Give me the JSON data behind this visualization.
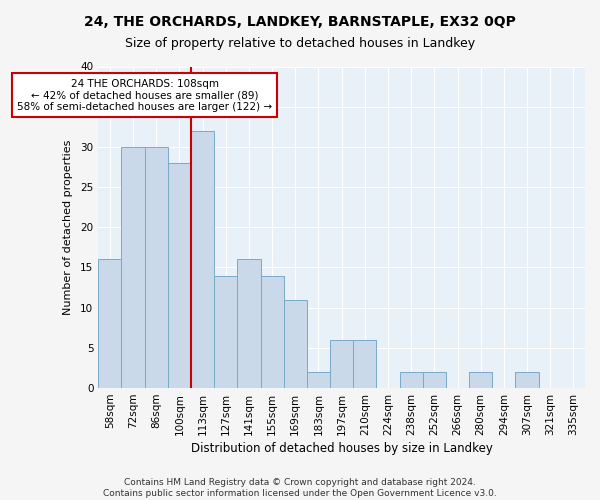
{
  "title1": "24, THE ORCHARDS, LANDKEY, BARNSTAPLE, EX32 0QP",
  "title2": "Size of property relative to detached houses in Landkey",
  "xlabel": "Distribution of detached houses by size in Landkey",
  "ylabel": "Number of detached properties",
  "categories": [
    "58sqm",
    "72sqm",
    "86sqm",
    "100sqm",
    "113sqm",
    "127sqm",
    "141sqm",
    "155sqm",
    "169sqm",
    "183sqm",
    "197sqm",
    "210sqm",
    "224sqm",
    "238sqm",
    "252sqm",
    "266sqm",
    "280sqm",
    "294sqm",
    "307sqm",
    "321sqm",
    "335sqm"
  ],
  "values": [
    16,
    30,
    30,
    28,
    32,
    14,
    16,
    14,
    11,
    2,
    6,
    6,
    0,
    2,
    2,
    0,
    2,
    0,
    2,
    0,
    0
  ],
  "bar_color": "#c9d9ea",
  "bar_edge_color": "#7aaac8",
  "vline_color": "#cc0000",
  "annotation_text": "24 THE ORCHARDS: 108sqm\n← 42% of detached houses are smaller (89)\n58% of semi-detached houses are larger (122) →",
  "annotation_box_color": "#ffffff",
  "annotation_box_edge": "#cc0000",
  "ylim": [
    0,
    40
  ],
  "yticks": [
    0,
    5,
    10,
    15,
    20,
    25,
    30,
    35,
    40
  ],
  "footnote": "Contains HM Land Registry data © Crown copyright and database right 2024.\nContains public sector information licensed under the Open Government Licence v3.0.",
  "bg_color": "#e8f0f8",
  "grid_color": "#ffffff",
  "fig_color": "#f5f5f5",
  "title1_fontsize": 10,
  "title2_fontsize": 9,
  "xlabel_fontsize": 8.5,
  "ylabel_fontsize": 8,
  "tick_fontsize": 7.5,
  "footnote_fontsize": 6.5,
  "annot_fontsize": 7.5
}
